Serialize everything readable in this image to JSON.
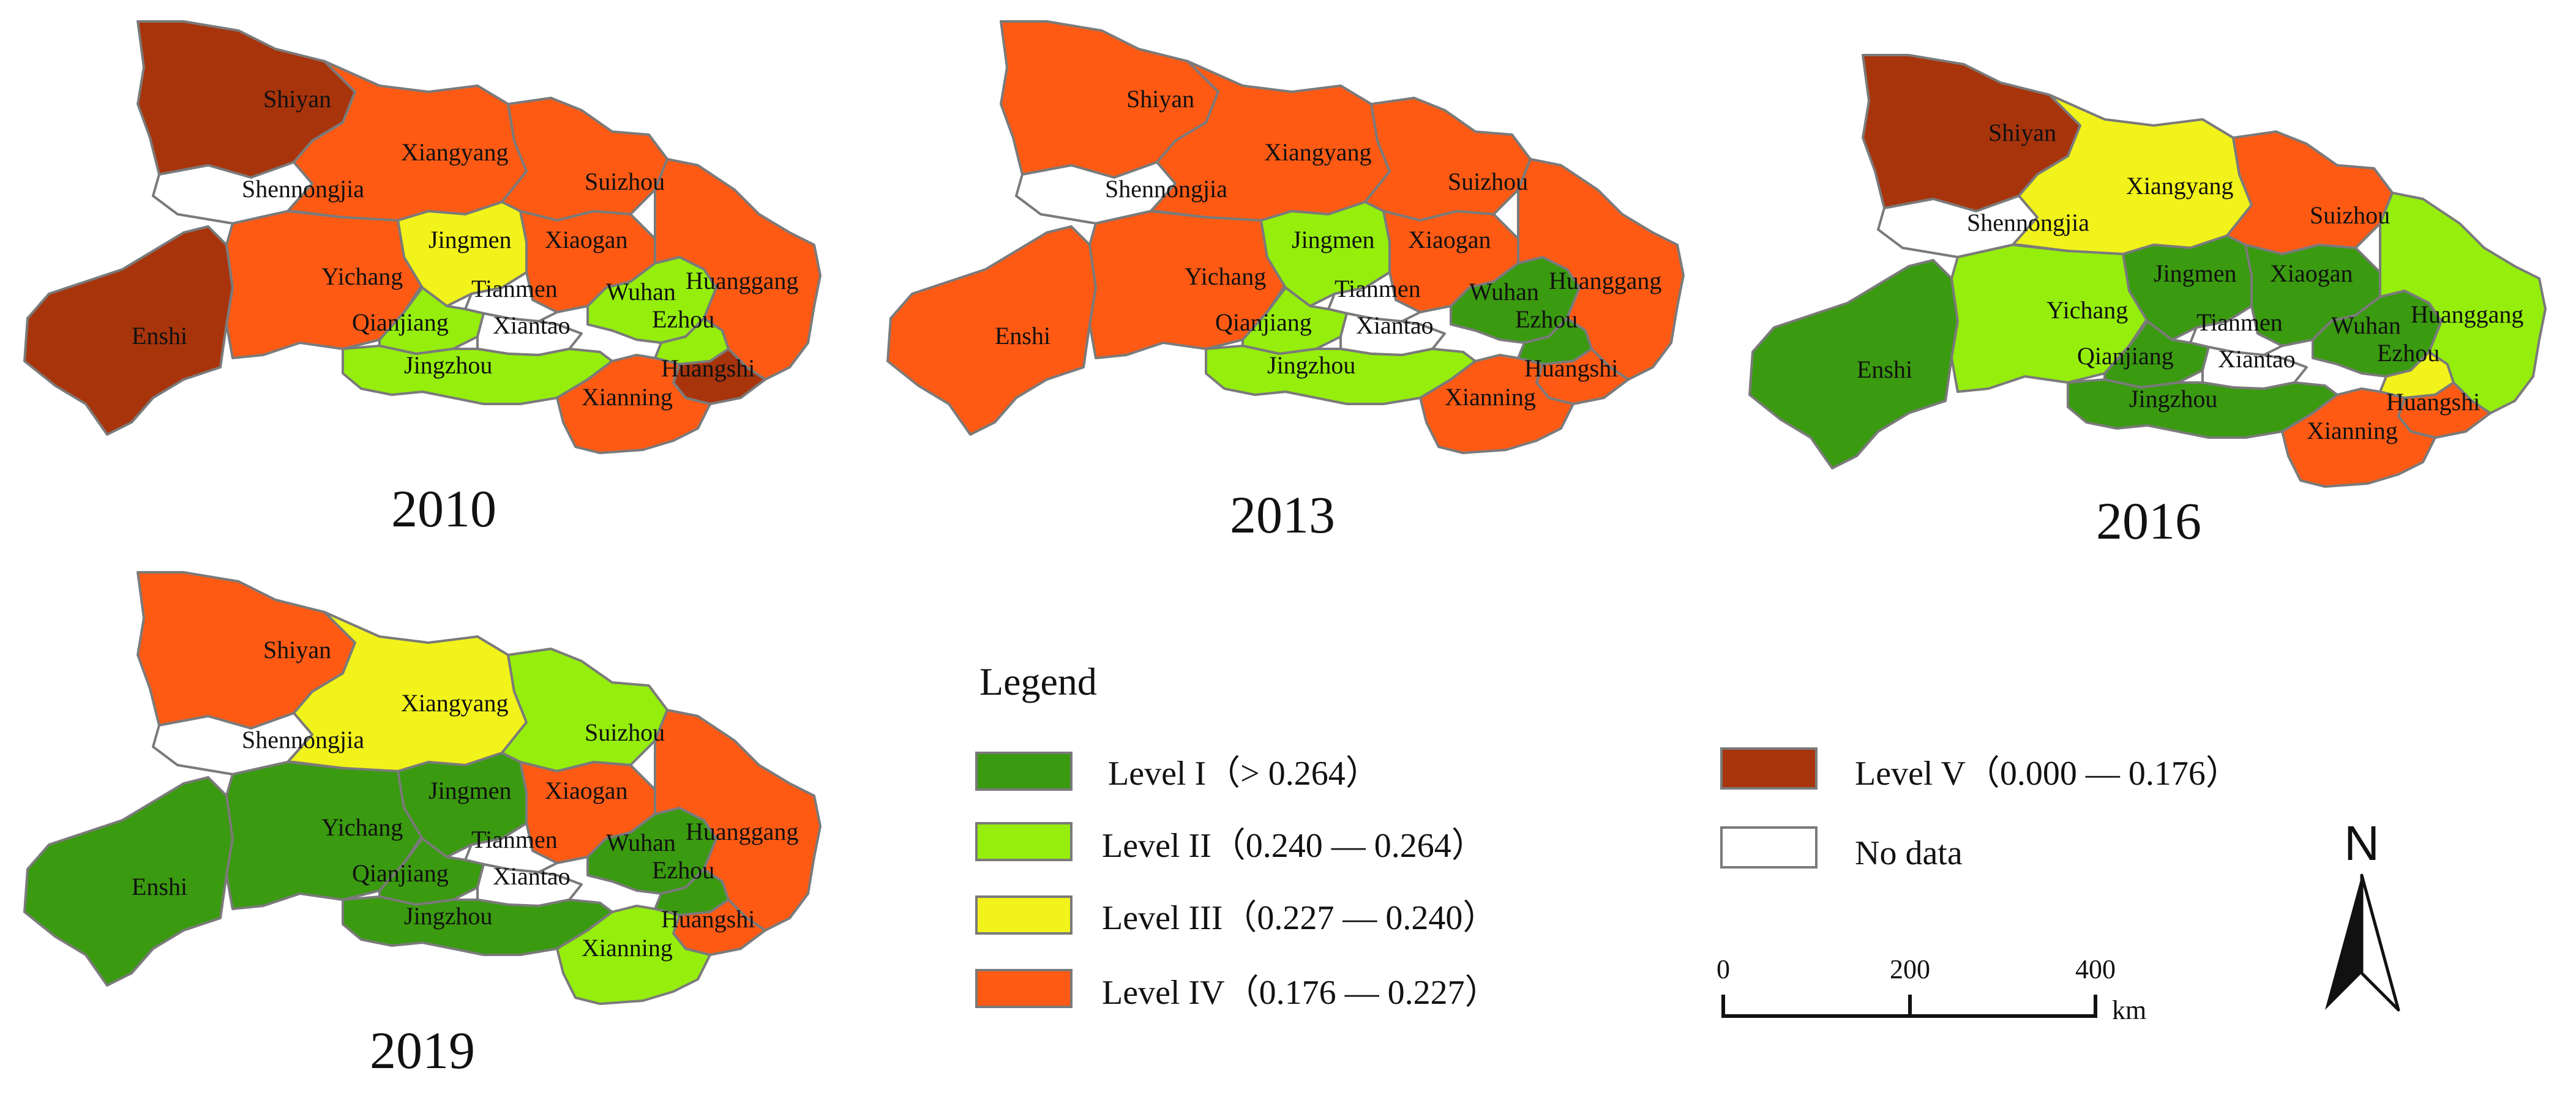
{
  "legend": {
    "title": "Legend",
    "items": [
      {
        "key": "I",
        "label": "Level I（> 0.264）",
        "color": "#3a9a10"
      },
      {
        "key": "II",
        "label": "Level II（0.240 — 0.264）",
        "color": "#95ee0c"
      },
      {
        "key": "III",
        "label": "Level III（0.227 — 0.240）",
        "color": "#f2f31a"
      },
      {
        "key": "IV",
        "label": "Level IV（0.176 — 0.227）",
        "color": "#ff5a14"
      },
      {
        "key": "V",
        "label": "Level V（0.000 — 0.176）",
        "color": "#a8340c"
      },
      {
        "key": "ND",
        "label": "No data",
        "color": "#ffffff"
      }
    ]
  },
  "scale_bar": {
    "ticks": [
      "0",
      "200",
      "400"
    ],
    "unit": "km"
  },
  "north_arrow": {
    "label": "N"
  },
  "maps": [
    {
      "year": "2010",
      "levels": {
        "Shiyan": "V",
        "Shennongjia": "ND",
        "Xiangyang": "IV",
        "Suizhou": "IV",
        "Enshi": "V",
        "Yichang": "IV",
        "Jingmen": "III",
        "Xiaogan": "IV",
        "Tianmen": "ND",
        "Qianjiang": "II",
        "Xiantao": "ND",
        "Jingzhou": "II",
        "Wuhan": "II",
        "Ezhou": "II",
        "Huanggang": "IV",
        "Huangshi": "V",
        "Xianning": "IV"
      }
    },
    {
      "year": "2013",
      "levels": {
        "Shiyan": "IV",
        "Shennongjia": "ND",
        "Xiangyang": "IV",
        "Suizhou": "IV",
        "Enshi": "IV",
        "Yichang": "IV",
        "Jingmen": "II",
        "Xiaogan": "IV",
        "Tianmen": "ND",
        "Qianjiang": "II",
        "Xiantao": "ND",
        "Jingzhou": "II",
        "Wuhan": "I",
        "Ezhou": "I",
        "Huanggang": "IV",
        "Huangshi": "IV",
        "Xianning": "IV"
      }
    },
    {
      "year": "2016",
      "levels": {
        "Shiyan": "V",
        "Shennongjia": "ND",
        "Xiangyang": "III",
        "Suizhou": "IV",
        "Enshi": "I",
        "Yichang": "II",
        "Jingmen": "I",
        "Xiaogan": "I",
        "Tianmen": "ND",
        "Qianjiang": "I",
        "Xiantao": "ND",
        "Jingzhou": "I",
        "Wuhan": "I",
        "Ezhou": "III",
        "Huanggang": "II",
        "Huangshi": "IV",
        "Xianning": "IV"
      }
    },
    {
      "year": "2019",
      "levels": {
        "Shiyan": "IV",
        "Shennongjia": "ND",
        "Xiangyang": "III",
        "Suizhou": "II",
        "Enshi": "I",
        "Yichang": "I",
        "Jingmen": "I",
        "Xiaogan": "IV",
        "Tianmen": "ND",
        "Qianjiang": "I",
        "Xiantao": "ND",
        "Jingzhou": "I",
        "Wuhan": "I",
        "Ezhou": "I",
        "Huanggang": "IV",
        "Huangshi": "IV",
        "Xianning": "II"
      }
    }
  ]
}
